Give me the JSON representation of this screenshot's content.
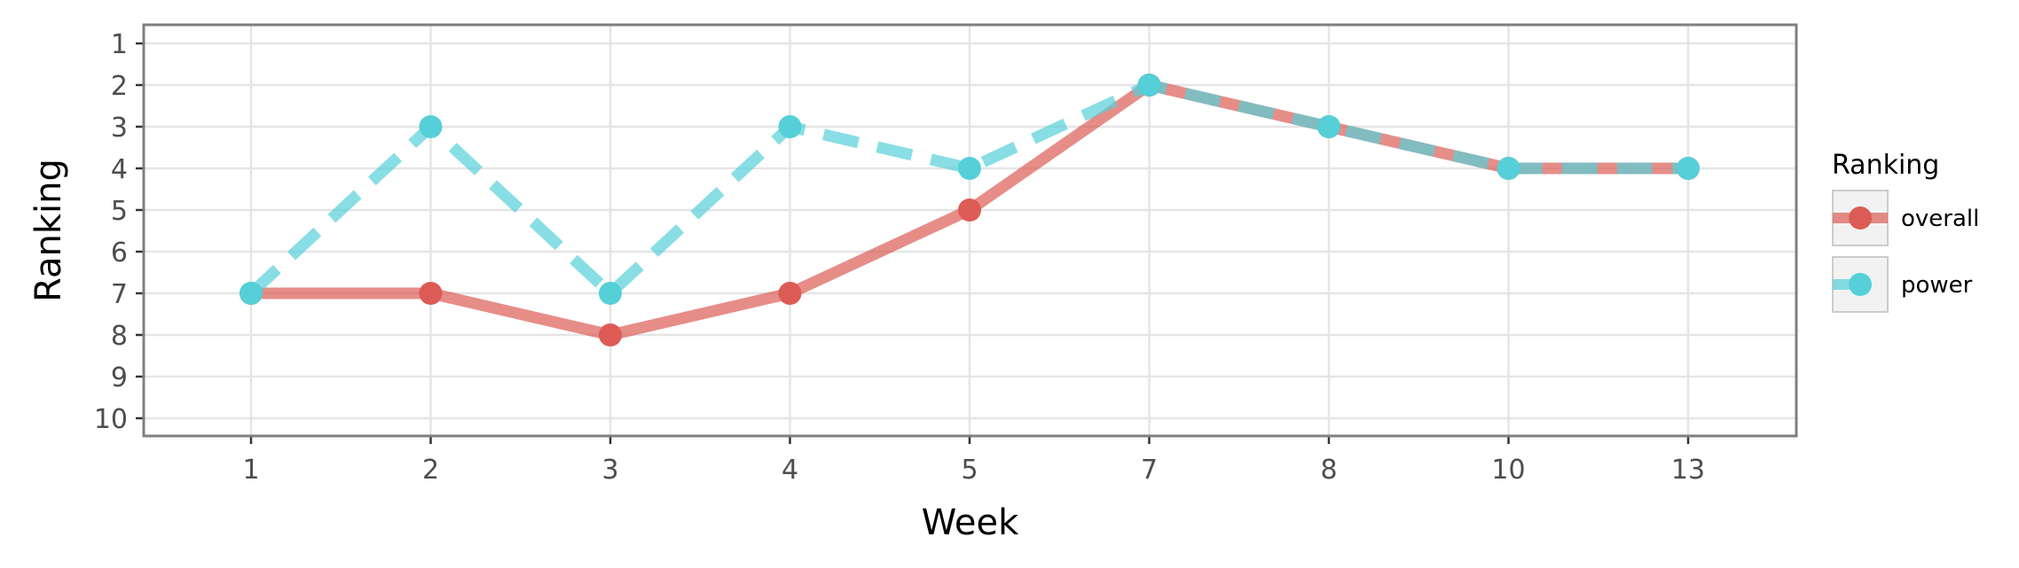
{
  "chart_data": {
    "type": "line",
    "xlabel": "Week",
    "ylabel": "Ranking",
    "categories": [
      "1",
      "2",
      "3",
      "4",
      "5",
      "7",
      "8",
      "10",
      "13"
    ],
    "y_ticks": [
      "1",
      "2",
      "3",
      "4",
      "5",
      "6",
      "7",
      "8",
      "9",
      "10"
    ],
    "ylim": [
      1,
      10
    ],
    "y_reversed": true,
    "grid": true,
    "legend": {
      "title": "Ranking",
      "placement": "right"
    },
    "series": [
      {
        "name": "overall",
        "color": "#dc5c55",
        "line_style": "solid",
        "values": [
          7,
          7,
          8,
          7,
          5,
          2,
          3,
          4,
          4
        ]
      },
      {
        "name": "power",
        "color": "#55d0d8",
        "line_style": "dashed",
        "values": [
          7,
          3,
          7,
          3,
          4,
          2,
          3,
          4,
          4
        ]
      }
    ]
  }
}
